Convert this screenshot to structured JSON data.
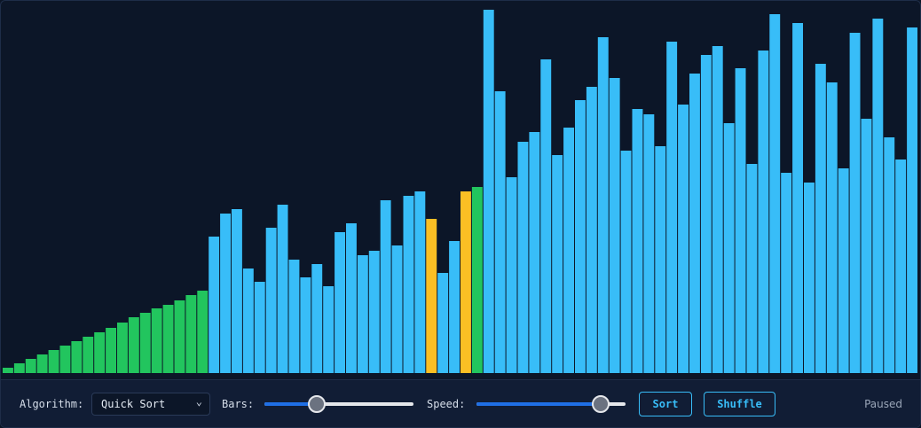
{
  "chart_data": {
    "type": "bar",
    "values": [
      6,
      11,
      16,
      21,
      26,
      31,
      36,
      41,
      46,
      51,
      57,
      63,
      68,
      73,
      77,
      82,
      88,
      93,
      154,
      180,
      185,
      118,
      103,
      164,
      190,
      128,
      108,
      123,
      98,
      159,
      169,
      133,
      138,
      195,
      144,
      200,
      205,
      174,
      113,
      149,
      205,
      210,
      410,
      318,
      221,
      261,
      272,
      354,
      246,
      277,
      308,
      323,
      379,
      333,
      251,
      298,
      292,
      256,
      374,
      303,
      338,
      359,
      369,
      282,
      344,
      236,
      364,
      405,
      226,
      395,
      215,
      349,
      328,
      231,
      384,
      287,
      400,
      266,
      241,
      390
    ],
    "colors": [
      "#22c55e",
      "#22c55e",
      "#22c55e",
      "#22c55e",
      "#22c55e",
      "#22c55e",
      "#22c55e",
      "#22c55e",
      "#22c55e",
      "#22c55e",
      "#22c55e",
      "#22c55e",
      "#22c55e",
      "#22c55e",
      "#22c55e",
      "#22c55e",
      "#22c55e",
      "#22c55e",
      "#38bdf8",
      "#38bdf8",
      "#38bdf8",
      "#38bdf8",
      "#38bdf8",
      "#38bdf8",
      "#38bdf8",
      "#38bdf8",
      "#38bdf8",
      "#38bdf8",
      "#38bdf8",
      "#38bdf8",
      "#38bdf8",
      "#38bdf8",
      "#38bdf8",
      "#38bdf8",
      "#38bdf8",
      "#38bdf8",
      "#38bdf8",
      "#fbbf24",
      "#38bdf8",
      "#38bdf8",
      "#fbbf24",
      "#22c55e",
      "#38bdf8",
      "#38bdf8",
      "#38bdf8",
      "#38bdf8",
      "#38bdf8",
      "#38bdf8",
      "#38bdf8",
      "#38bdf8",
      "#38bdf8",
      "#38bdf8",
      "#38bdf8",
      "#38bdf8",
      "#38bdf8",
      "#38bdf8",
      "#38bdf8",
      "#38bdf8",
      "#38bdf8",
      "#38bdf8",
      "#38bdf8",
      "#38bdf8",
      "#38bdf8",
      "#38bdf8",
      "#38bdf8",
      "#38bdf8",
      "#38bdf8",
      "#38bdf8",
      "#38bdf8",
      "#38bdf8",
      "#38bdf8",
      "#38bdf8",
      "#38bdf8",
      "#38bdf8",
      "#38bdf8",
      "#38bdf8",
      "#38bdf8",
      "#38bdf8",
      "#38bdf8",
      "#38bdf8"
    ],
    "ylim": [
      0,
      410
    ]
  },
  "controls": {
    "algorithm_label": "Algorithm:",
    "algorithm": "Quick Sort",
    "bars_label": "Bars:",
    "speed_label": "Speed:",
    "sort_button": "Sort",
    "shuffle_button": "Shuffle",
    "status": "Paused"
  }
}
